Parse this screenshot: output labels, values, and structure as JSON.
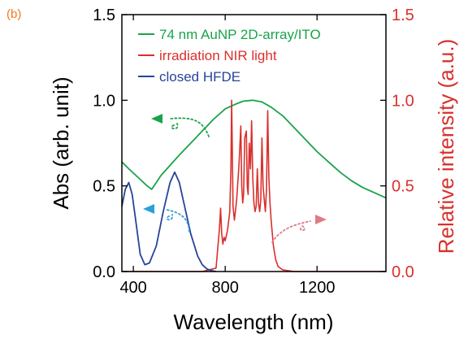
{
  "chart_data": {
    "type": "line",
    "panel_label": "(b)",
    "xlabel": "Wavelength (nm)",
    "ylabel_left": "Abs (arb. unit)",
    "ylabel_right": "Relative intensity (a.u.)",
    "xlim": [
      350,
      1500
    ],
    "ylim_left": [
      0,
      1.5
    ],
    "ylim_right": [
      0,
      1.5
    ],
    "x_ticks": [
      400,
      800,
      1200
    ],
    "x_tick_labels": [
      "400",
      "800",
      "1200"
    ],
    "y_ticks_left": [
      0,
      0.5,
      1.0,
      1.5
    ],
    "y_tick_labels_left": [
      "0.0",
      "0.5",
      "1.0",
      "1.5"
    ],
    "y_ticks_right": [
      0,
      0.5,
      1.0,
      1.5
    ],
    "y_tick_labels_right": [
      "0.0",
      "0.5",
      "1.0",
      "1.5"
    ],
    "grid": false,
    "legend_position": "top-left",
    "colors": {
      "green": "#1aa34a",
      "red": "#d9302c",
      "blue": "#26449a",
      "cyan": "#2aa0d8",
      "pink": "#e07a86",
      "right_axis": "#d9302c"
    },
    "series": [
      {
        "name": "74 nm AuNP 2D-array/ITO",
        "axis": "left",
        "color": "#1aa34a",
        "x": [
          350,
          380,
          420,
          460,
          480,
          500,
          520,
          560,
          600,
          650,
          700,
          750,
          800,
          850,
          880,
          920,
          960,
          1000,
          1050,
          1100,
          1150,
          1200,
          1250,
          1300,
          1350,
          1400,
          1450,
          1500
        ],
        "y": [
          0.64,
          0.6,
          0.55,
          0.5,
          0.48,
          0.52,
          0.56,
          0.62,
          0.68,
          0.75,
          0.82,
          0.89,
          0.95,
          0.98,
          0.995,
          1.0,
          0.99,
          0.96,
          0.91,
          0.84,
          0.77,
          0.7,
          0.64,
          0.58,
          0.53,
          0.49,
          0.46,
          0.43
        ]
      },
      {
        "name": "irradiation NIR light",
        "axis": "right",
        "color": "#d9302c",
        "x": [
          350,
          700,
          760,
          775,
          780,
          785,
          790,
          795,
          800,
          810,
          820,
          825,
          828,
          831,
          834,
          840,
          850,
          860,
          868,
          872,
          876,
          880,
          885,
          892,
          896,
          900,
          905,
          910,
          915,
          920,
          925,
          930,
          935,
          940,
          945,
          950,
          955,
          960,
          965,
          970,
          975,
          980,
          985,
          990,
          995,
          1000,
          1010,
          1020,
          1030,
          1050,
          1100,
          1500
        ],
        "y": [
          0.0,
          0.0,
          0.02,
          0.25,
          0.37,
          0.22,
          0.16,
          0.2,
          0.18,
          0.24,
          0.35,
          0.6,
          1.0,
          0.72,
          0.38,
          0.3,
          0.42,
          0.62,
          0.85,
          0.5,
          0.4,
          0.45,
          0.78,
          0.82,
          0.5,
          0.45,
          0.75,
          0.6,
          0.88,
          0.55,
          0.4,
          0.35,
          0.38,
          0.6,
          0.4,
          0.35,
          0.42,
          0.78,
          0.5,
          0.42,
          0.35,
          0.48,
          0.94,
          0.55,
          0.4,
          0.3,
          0.15,
          0.07,
          0.03,
          0.01,
          0.0,
          0.0
        ]
      },
      {
        "name": "closed HFDE",
        "axis": "left",
        "color": "#26449a",
        "x": [
          350,
          365,
          380,
          395,
          410,
          430,
          450,
          470,
          500,
          530,
          560,
          580,
          600,
          620,
          650,
          680,
          700,
          720,
          740,
          760
        ],
        "y": [
          0.38,
          0.48,
          0.52,
          0.45,
          0.3,
          0.1,
          0.04,
          0.05,
          0.15,
          0.35,
          0.52,
          0.58,
          0.52,
          0.4,
          0.22,
          0.09,
          0.04,
          0.015,
          0.005,
          0.0
        ]
      }
    ]
  }
}
